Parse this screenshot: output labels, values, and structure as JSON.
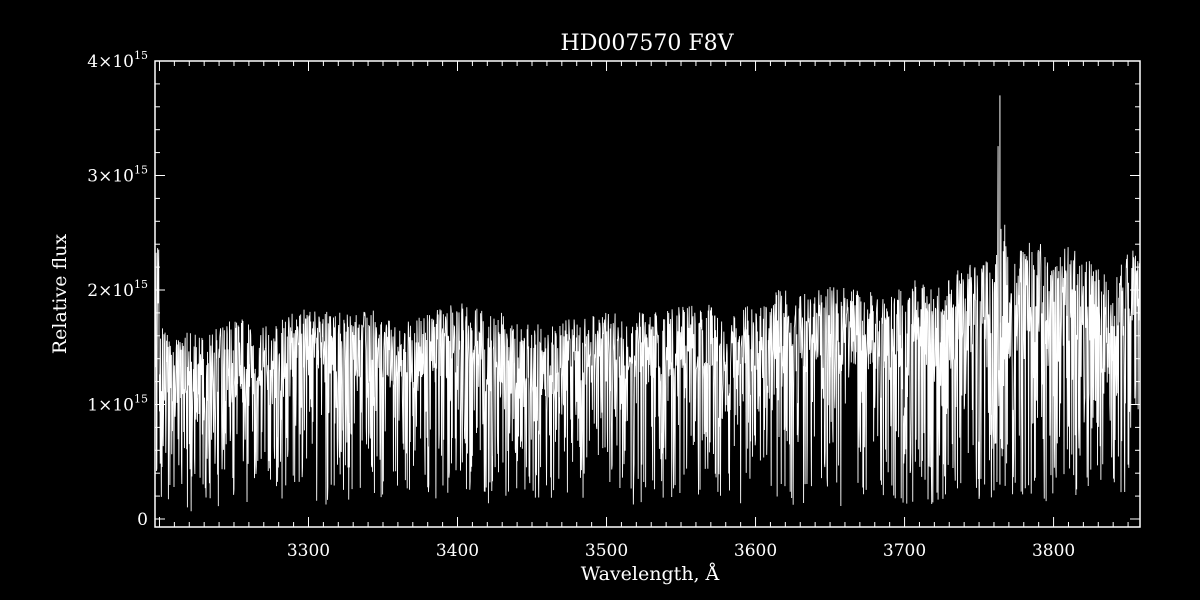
{
  "chart_data": {
    "type": "line",
    "title": "HD007570  F8V",
    "xlabel": "Wavelength, Å",
    "ylabel": "Relative flux",
    "xlim": [
      3197,
      3858
    ],
    "ylim": [
      -70000000000000.0,
      4000000000000000.0
    ],
    "x_ticks": [
      3300,
      3400,
      3500,
      3600,
      3700,
      3800
    ],
    "x_tick_labels": [
      "3300",
      "3400",
      "3500",
      "3600",
      "3700",
      "3800"
    ],
    "y_ticks": [
      0,
      1000000000000000.0,
      2000000000000000.0,
      3000000000000000.0,
      4000000000000000.0
    ],
    "y_tick_labels": [
      {
        "mantissa": "0",
        "exp": ""
      },
      {
        "mantissa": "1×10",
        "exp": "15"
      },
      {
        "mantissa": "2×10",
        "exp": "15"
      },
      {
        "mantissa": "3×10",
        "exp": "15"
      },
      {
        "mantissa": "4×10",
        "exp": "15"
      }
    ],
    "grid": false,
    "series": [
      {
        "x": [
          3200,
          3210,
          3220,
          3230,
          3240,
          3250,
          3260,
          3270,
          3280,
          3290,
          3300,
          3310,
          3320,
          3330,
          3340,
          3350,
          3360,
          3370,
          3380,
          3390,
          3400,
          3410,
          3420,
          3430,
          3440,
          3450,
          3460,
          3470,
          3480,
          3490,
          3500,
          3510,
          3520,
          3530,
          3540,
          3550,
          3560,
          3570,
          3580,
          3590,
          3600,
          3610,
          3620,
          3630,
          3640,
          3650,
          3660,
          3670,
          3680,
          3690,
          3700,
          3710,
          3720,
          3730,
          3740,
          3750,
          3760,
          3764,
          3770,
          3780,
          3790,
          3800,
          3810,
          3820,
          3830,
          3840,
          3850,
          3857
        ],
        "upper": [
          1700000000000000.0,
          1550000000000000.0,
          1650000000000000.0,
          1600000000000000.0,
          1700000000000000.0,
          1750000000000000.0,
          1750000000000000.0,
          1700000000000000.0,
          1750000000000000.0,
          1800000000000000.0,
          1850000000000000.0,
          1800000000000000.0,
          1850000000000000.0,
          1800000000000000.0,
          1850000000000000.0,
          1800000000000000.0,
          1700000000000000.0,
          1750000000000000.0,
          1800000000000000.0,
          1850000000000000.0,
          1900000000000000.0,
          1850000000000000.0,
          1850000000000000.0,
          1800000000000000.0,
          1750000000000000.0,
          1700000000000000.0,
          1700000000000000.0,
          1750000000000000.0,
          1750000000000000.0,
          1800000000000000.0,
          1800000000000000.0,
          1800000000000000.0,
          1850000000000000.0,
          1800000000000000.0,
          1850000000000000.0,
          1850000000000000.0,
          1900000000000000.0,
          1900000000000000.0,
          1750000000000000.0,
          1800000000000000.0,
          1950000000000000.0,
          2000000000000000.0,
          2000000000000000.0,
          1950000000000000.0,
          2000000000000000.0,
          2050000000000000.0,
          2050000000000000.0,
          2000000000000000.0,
          2000000000000000.0,
          1950000000000000.0,
          2050000000000000.0,
          2100000000000000.0,
          2000000000000000.0,
          2150000000000000.0,
          2200000000000000.0,
          2250000000000000.0,
          2300000000000000.0,
          3700000000000000.0,
          2200000000000000.0,
          2400000000000000.0,
          2450000000000000.0,
          2200000000000000.0,
          2450000000000000.0,
          2350000000000000.0,
          2200000000000000.0,
          2100000000000000.0,
          2400000000000000.0,
          2450000000000000.0
        ],
        "lower": [
          50000000000000.0,
          150000000000000.0,
          50000000000000.0,
          50000000000000.0,
          100000000000000.0,
          200000000000000.0,
          100000000000000.0,
          200000000000000.0,
          150000000000000.0,
          250000000000000.0,
          200000000000000.0,
          100000000000000.0,
          200000000000000.0,
          150000000000000.0,
          200000000000000.0,
          100000000000000.0,
          250000000000000.0,
          200000000000000.0,
          150000000000000.0,
          100000000000000.0,
          200000000000000.0,
          150000000000000.0,
          100000000000000.0,
          200000000000000.0,
          150000000000000.0,
          200000000000000.0,
          100000000000000.0,
          200000000000000.0,
          150000000000000.0,
          100000000000000.0,
          200000000000000.0,
          150000000000000.0,
          100000000000000.0,
          200000000000000.0,
          150000000000000.0,
          200000000000000.0,
          100000000000000.0,
          150000000000000.0,
          200000000000000.0,
          100000000000000.0,
          150000000000000.0,
          200000000000000.0,
          150000000000000.0,
          100000000000000.0,
          200000000000000.0,
          150000000000000.0,
          100000000000000.0,
          200000000000000.0,
          150000000000000.0,
          200000000000000.0,
          100000000000000.0,
          150000000000000.0,
          100000000000000.0,
          200000000000000.0,
          150000000000000.0,
          100000000000000.0,
          200000000000000.0,
          300000000000000.0,
          150000000000000.0,
          200000000000000.0,
          100000000000000.0,
          150000000000000.0,
          200000000000000.0,
          100000000000000.0,
          150000000000000.0,
          100000000000000.0,
          200000000000000.0,
          200000000000000.0
        ],
        "core": [
          1100000000000000.0,
          1100000000000000.0,
          1150000000000000.0,
          1100000000000000.0,
          1200000000000000.0,
          1300000000000000.0,
          1350000000000000.0,
          1300000000000000.0,
          1350000000000000.0,
          1400000000000000.0,
          1400000000000000.0,
          1450000000000000.0,
          1400000000000000.0,
          1450000000000000.0,
          1400000000000000.0,
          1350000000000000.0,
          1200000000000000.0,
          1300000000000000.0,
          1350000000000000.0,
          1400000000000000.0,
          1450000000000000.0,
          1400000000000000.0,
          1350000000000000.0,
          1300000000000000.0,
          1250000000000000.0,
          1200000000000000.0,
          1250000000000000.0,
          1300000000000000.0,
          1350000000000000.0,
          1300000000000000.0,
          1350000000000000.0,
          1400000000000000.0,
          1350000000000000.0,
          1400000000000000.0,
          1400000000000000.0,
          1450000000000000.0,
          1500000000000000.0,
          1450000000000000.0,
          1200000000000000.0,
          1400000000000000.0,
          1500000000000000.0,
          1550000000000000.0,
          1550000000000000.0,
          1500000000000000.0,
          1550000000000000.0,
          1600000000000000.0,
          1600000000000000.0,
          1550000000000000.0,
          1550000000000000.0,
          1500000000000000.0,
          1600000000000000.0,
          1650000000000000.0,
          1550000000000000.0,
          1600000000000000.0,
          1650000000000000.0,
          1700000000000000.0,
          1750000000000000.0,
          1750000000000000.0,
          1600000000000000.0,
          1800000000000000.0,
          1900000000000000.0,
          1600000000000000.0,
          1900000000000000.0,
          1800000000000000.0,
          1550000000000000.0,
          1500000000000000.0,
          1800000000000000.0,
          1900000000000000.0
        ]
      }
    ]
  }
}
